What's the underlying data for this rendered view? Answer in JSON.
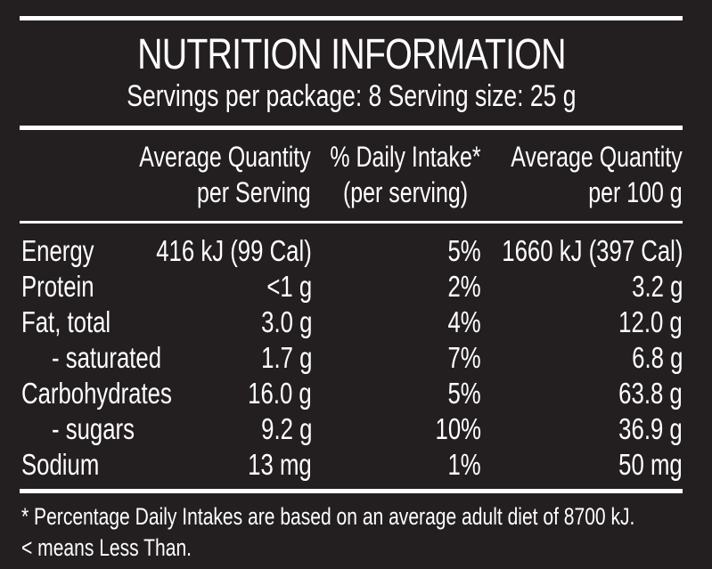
{
  "panel": {
    "title": "NUTRITION INFORMATION",
    "servings": "Servings per package: 8  Serving size: 25 g"
  },
  "columns": {
    "per_serving": [
      "Average Quantity",
      "per Serving"
    ],
    "daily_intake": [
      "% Daily Intake*",
      "(per serving)"
    ],
    "per_100g": [
      "Average Quantity",
      "per 100 g"
    ]
  },
  "rows": [
    {
      "name": "Energy",
      "per_serving": "416 kJ (99 Cal)",
      "daily": "5%",
      "per_100g": "1660 kJ (397 Cal)"
    },
    {
      "name": "Protein",
      "per_serving": "<1 g",
      "daily": "2%",
      "per_100g": "3.2 g"
    },
    {
      "name": "Fat, total",
      "per_serving": "3.0 g",
      "daily": "4%",
      "per_100g": "12.0 g"
    },
    {
      "name": "- saturated",
      "per_serving": "1.7 g",
      "daily": "7%",
      "per_100g": "6.8 g"
    },
    {
      "name": "Carbohydrates",
      "per_serving": "16.0 g",
      "daily": "5%",
      "per_100g": "63.8 g"
    },
    {
      "name": "- sugars",
      "per_serving": "9.2 g",
      "daily": "10%",
      "per_100g": "36.9 g"
    },
    {
      "name": "Sodium",
      "per_serving": "13 mg",
      "daily": "1%",
      "per_100g": "50 mg"
    }
  ],
  "footnotes": [
    "* Percentage Daily Intakes are based on an average adult diet of 8700 kJ.",
    "< means Less Than."
  ],
  "colors": {
    "background": "#231f20",
    "text": "#ffffff"
  }
}
